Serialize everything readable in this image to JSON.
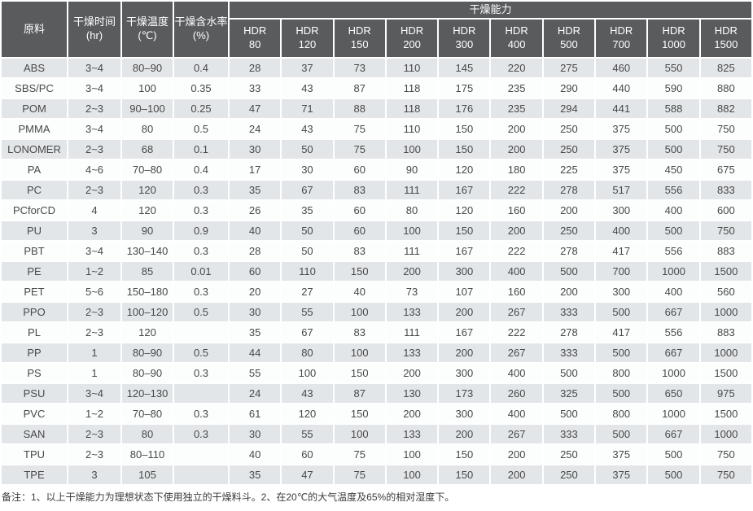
{
  "colors": {
    "header_bg": "#5a5b5d",
    "material_col_bg": "#b8bbbd",
    "row_odd_bg": "#e3e6e8",
    "row_even_bg": "#fcfdfd",
    "header_text": "#ffffff",
    "cell_text": "#47484a",
    "footnote_text": "#3b3b3b"
  },
  "table": {
    "header": {
      "col_material": "原料",
      "col_time": "干燥时间\n(hr)",
      "col_temp": "干燥温度\n(℃)",
      "col_moisture": "干燥含水率\n(%)",
      "capacity_group": "干燥能力",
      "hdr_models": [
        "HDR\n80",
        "HDR\n120",
        "HDR\n150",
        "HDR\n200",
        "HDR\n300",
        "HDR\n400",
        "HDR\n500",
        "HDR\n700",
        "HDR\n1000",
        "HDR\n1500"
      ]
    },
    "rows": [
      {
        "material": "ABS",
        "time": "3~4",
        "temp": "80–90",
        "moisture": "0.4",
        "capacity": [
          28,
          37,
          73,
          110,
          145,
          220,
          275,
          460,
          550,
          825
        ]
      },
      {
        "material": "SBS/PC",
        "time": "3~4",
        "temp": "100",
        "moisture": "0.35",
        "capacity": [
          33,
          43,
          87,
          118,
          175,
          235,
          290,
          440,
          590,
          880
        ]
      },
      {
        "material": "POM",
        "time": "2~3",
        "temp": "90–100",
        "moisture": "0.25",
        "capacity": [
          47,
          71,
          88,
          118,
          176,
          235,
          294,
          441,
          588,
          882
        ]
      },
      {
        "material": "PMMA",
        "time": "3~4",
        "temp": "80",
        "moisture": "0.5",
        "capacity": [
          24,
          43,
          75,
          110,
          150,
          200,
          250,
          375,
          500,
          750
        ]
      },
      {
        "material": "LONOMER",
        "time": "2~3",
        "temp": "68",
        "moisture": "0.1",
        "capacity": [
          30,
          50,
          75,
          100,
          150,
          200,
          250,
          375,
          500,
          750
        ]
      },
      {
        "material": "PA",
        "time": "4~6",
        "temp": "70–80",
        "moisture": "0.4",
        "capacity": [
          17,
          30,
          60,
          90,
          120,
          180,
          225,
          375,
          450,
          675
        ]
      },
      {
        "material": "PC",
        "time": "2~3",
        "temp": "120",
        "moisture": "0.3",
        "capacity": [
          35,
          67,
          83,
          111,
          167,
          222,
          278,
          517,
          556,
          833
        ]
      },
      {
        "material": "PCforCD",
        "time": "4",
        "temp": "120",
        "moisture": "0.3",
        "capacity": [
          26,
          35,
          60,
          80,
          120,
          160,
          200,
          300,
          400,
          600
        ]
      },
      {
        "material": "PU",
        "time": "3",
        "temp": "90",
        "moisture": "0.9",
        "capacity": [
          40,
          50,
          60,
          100,
          150,
          200,
          250,
          400,
          500,
          750
        ]
      },
      {
        "material": "PBT",
        "time": "3~4",
        "temp": "130–140",
        "moisture": "0.3",
        "capacity": [
          28,
          50,
          83,
          111,
          167,
          222,
          278,
          417,
          556,
          883
        ]
      },
      {
        "material": "PE",
        "time": "1~2",
        "temp": "85",
        "moisture": "0.01",
        "capacity": [
          60,
          110,
          150,
          200,
          300,
          400,
          500,
          700,
          1000,
          1500
        ]
      },
      {
        "material": "PET",
        "time": "5~6",
        "temp": "150–180",
        "moisture": "0.3",
        "capacity": [
          20,
          27,
          40,
          73,
          107,
          160,
          200,
          300,
          400,
          560
        ]
      },
      {
        "material": "PPO",
        "time": "2~3",
        "temp": "100–120",
        "moisture": "0.5",
        "capacity": [
          30,
          55,
          100,
          133,
          200,
          267,
          333,
          500,
          667,
          1000
        ]
      },
      {
        "material": "PL",
        "time": "2~3",
        "temp": "120",
        "moisture": "",
        "capacity": [
          35,
          67,
          83,
          111,
          167,
          222,
          278,
          417,
          556,
          883
        ]
      },
      {
        "material": "PP",
        "time": "1",
        "temp": "80–90",
        "moisture": "0.5",
        "capacity": [
          44,
          80,
          100,
          133,
          200,
          267,
          333,
          500,
          667,
          1000
        ]
      },
      {
        "material": "PS",
        "time": "1",
        "temp": "80–90",
        "moisture": "0.3",
        "capacity": [
          55,
          100,
          150,
          200,
          300,
          400,
          500,
          800,
          1000,
          1500
        ]
      },
      {
        "material": "PSU",
        "time": "3~4",
        "temp": "120–130",
        "moisture": "",
        "capacity": [
          24,
          43,
          87,
          130,
          173,
          260,
          325,
          500,
          650,
          975
        ]
      },
      {
        "material": "PVC",
        "time": "1~2",
        "temp": "70–80",
        "moisture": "0.3",
        "capacity": [
          61,
          120,
          150,
          200,
          300,
          400,
          500,
          800,
          1000,
          1500
        ]
      },
      {
        "material": "SAN",
        "time": "2~3",
        "temp": "80",
        "moisture": "0.3",
        "capacity": [
          30,
          55,
          100,
          133,
          200,
          267,
          333,
          500,
          667,
          1000
        ]
      },
      {
        "material": "TPU",
        "time": "2~3",
        "temp": "80–110",
        "moisture": "",
        "capacity": [
          40,
          60,
          75,
          100,
          150,
          200,
          250,
          375,
          500,
          750
        ]
      },
      {
        "material": "TPE",
        "time": "3",
        "temp": "105",
        "moisture": "",
        "capacity": [
          35,
          47,
          75,
          100,
          150,
          200,
          250,
          375,
          500,
          750
        ]
      }
    ]
  },
  "footnote": "备注：1、以上干燥能力为理想状态下使用独立的干燥料斗。2、在20℃的大气温度及65%的相对湿度下。"
}
